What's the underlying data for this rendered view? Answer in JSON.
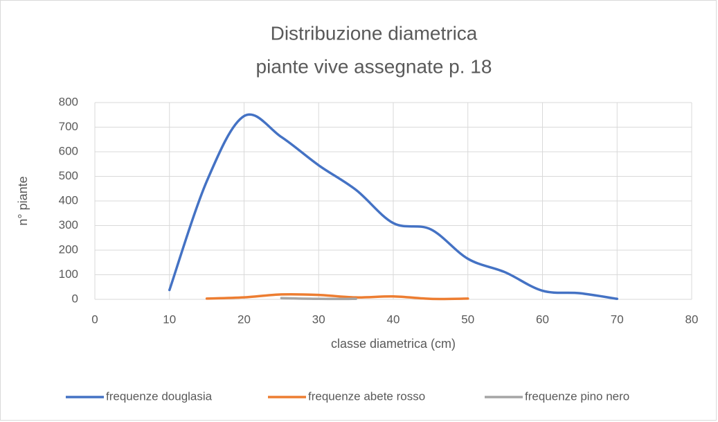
{
  "chart_data": {
    "type": "line",
    "title": [
      "Distribuzione diametrica",
      "piante vive assegnate p. 18"
    ],
    "x_label": "classe diametrica (cm)",
    "y_label": "n° piante",
    "smooth": true,
    "grid": true,
    "legend": "bottom",
    "xlim": [
      0,
      80
    ],
    "xticks": [
      0,
      10,
      20,
      30,
      40,
      50,
      60,
      70,
      80
    ],
    "ylim": [
      0,
      800
    ],
    "yticks": [
      0,
      100,
      200,
      300,
      400,
      500,
      600,
      700,
      800
    ],
    "series": [
      {
        "name": "frequenze douglasia",
        "color": "#4472c4",
        "x": [
          10,
          15,
          20,
          25,
          30,
          35,
          40,
          45,
          50,
          55,
          60,
          65,
          70
        ],
        "values": [
          38,
          480,
          745,
          660,
          545,
          445,
          310,
          285,
          165,
          110,
          35,
          25,
          2
        ]
      },
      {
        "name": "frequenze abete rosso",
        "color": "#ed7d31",
        "x": [
          15,
          20,
          25,
          30,
          35,
          40,
          45,
          50
        ],
        "values": [
          3,
          8,
          20,
          18,
          8,
          12,
          2,
          3
        ]
      },
      {
        "name": "frequenze pino  nero",
        "color": "#a5a5a5",
        "x": [
          25,
          30,
          35
        ],
        "values": [
          5,
          2,
          2
        ]
      }
    ]
  }
}
